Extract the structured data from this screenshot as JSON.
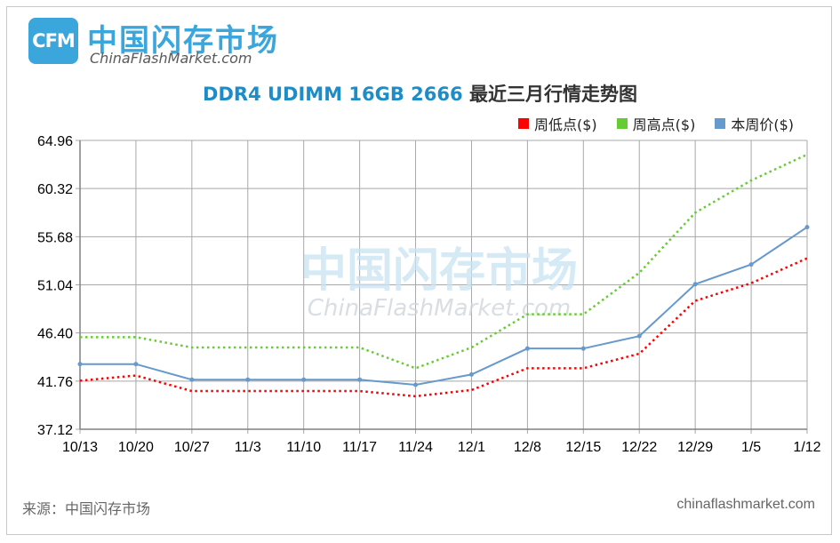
{
  "logo": {
    "badge": "CFM",
    "name_cn": "中国闪存市场",
    "name_en": "ChinaFlashMarket.com"
  },
  "header": {
    "title_en": "DDR4 UDIMM 16GB 2666",
    "title_cn": "最近三月行情走势图"
  },
  "legend": [
    {
      "label": "周低点($)",
      "color": "#ff0000"
    },
    {
      "label": "周高点($)",
      "color": "#66cc33"
    },
    {
      "label": "本周价($)",
      "color": "#6699cc"
    }
  ],
  "watermark": {
    "cn": "中国闪存市场",
    "en": "ChinaFlashMarket.com"
  },
  "footer": {
    "source": "来源：中国闪存市场",
    "site": "chinaflashmarket.com"
  },
  "chart_data": {
    "type": "line",
    "title": "DDR4 UDIMM 16GB 2666 最近三月行情走势图",
    "categories": [
      "10/13",
      "10/20",
      "10/27",
      "11/3",
      "11/10",
      "11/17",
      "11/24",
      "12/1",
      "12/8",
      "12/15",
      "12/22",
      "12/29",
      "1/5",
      "1/12"
    ],
    "y_ticks": [
      "64.96",
      "60.32",
      "55.68",
      "51.04",
      "46.40",
      "41.76",
      "37.12"
    ],
    "ylim": [
      37.12,
      64.96
    ],
    "grid": true,
    "legend_position": "top-right",
    "series": [
      {
        "name": "周低点($)",
        "color": "#ff0000",
        "style": "dotted",
        "values": [
          41.8,
          42.3,
          40.8,
          40.8,
          40.8,
          40.8,
          40.3,
          40.9,
          43.0,
          43.0,
          44.4,
          49.5,
          51.2,
          53.6
        ]
      },
      {
        "name": "周高点($)",
        "color": "#66cc33",
        "style": "dotted",
        "values": [
          46.0,
          46.0,
          45.0,
          45.0,
          45.0,
          45.0,
          43.0,
          45.0,
          48.2,
          48.2,
          52.2,
          58.0,
          61.1,
          63.6
        ]
      },
      {
        "name": "本周价($)",
        "color": "#6699cc",
        "style": "solid",
        "values": [
          43.4,
          43.4,
          41.9,
          41.9,
          41.9,
          41.9,
          41.4,
          42.4,
          44.9,
          44.9,
          46.1,
          51.1,
          53.0,
          56.6
        ]
      }
    ]
  }
}
